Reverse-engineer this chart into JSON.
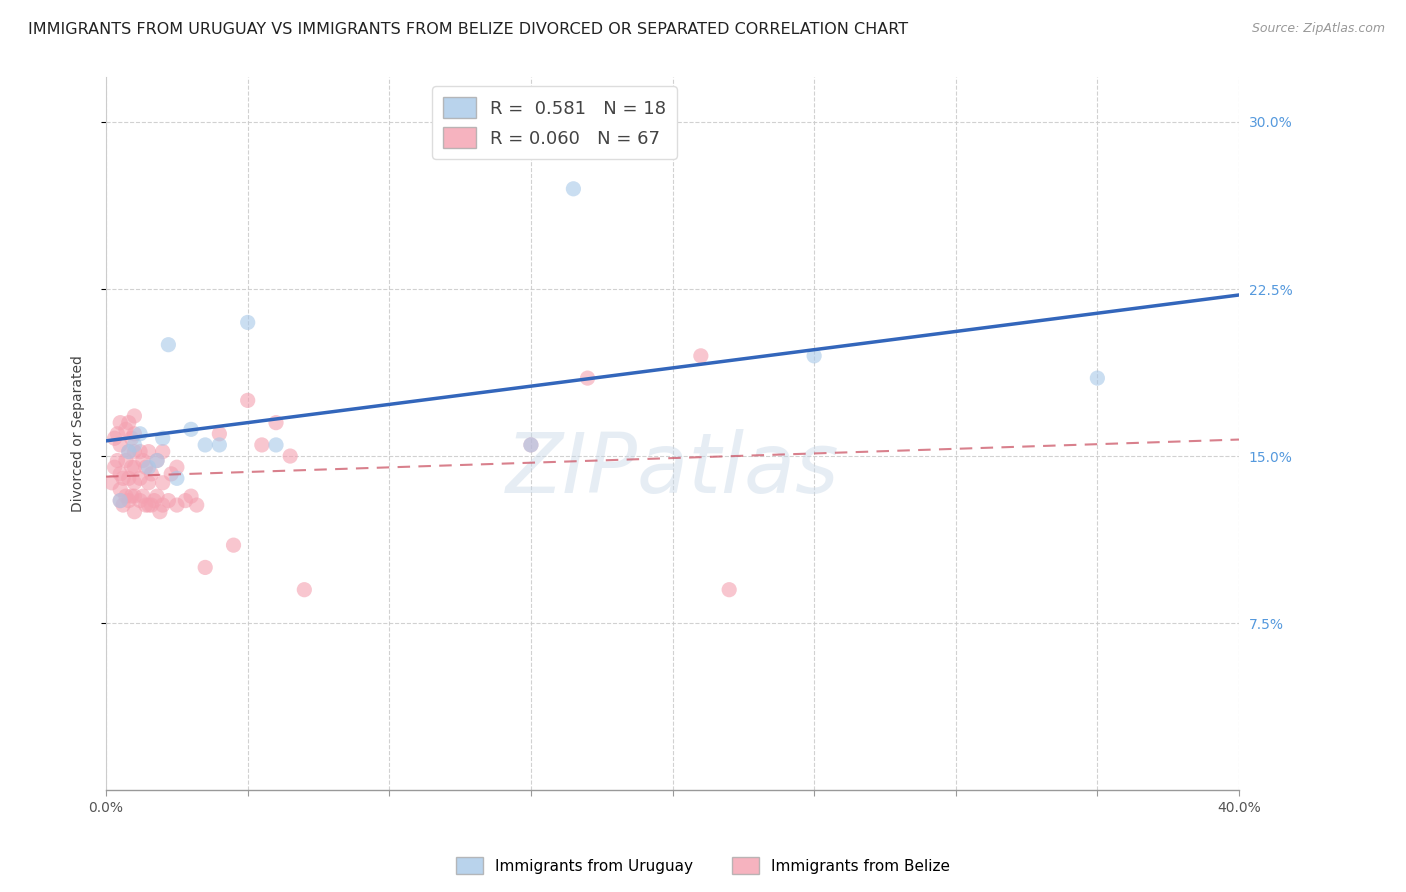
{
  "title": "IMMIGRANTS FROM URUGUAY VS IMMIGRANTS FROM BELIZE DIVORCED OR SEPARATED CORRELATION CHART",
  "source": "Source: ZipAtlas.com",
  "ylabel": "Divorced or Separated",
  "xlim": [
    0.0,
    0.4
  ],
  "ylim": [
    0.0,
    0.32
  ],
  "xlabel_vals": [
    0.0,
    0.05,
    0.1,
    0.15,
    0.2,
    0.25,
    0.3,
    0.35,
    0.4
  ],
  "xlabel_show": [
    0.0,
    0.4
  ],
  "ylabel_vals": [
    0.075,
    0.15,
    0.225,
    0.3
  ],
  "legend_labels": [
    "Immigrants from Uruguay",
    "Immigrants from Belize"
  ],
  "R_uruguay": 0.581,
  "N_uruguay": 18,
  "R_belize": 0.06,
  "N_belize": 67,
  "color_uruguay": "#a8c8e8",
  "color_belize": "#f4a0b0",
  "color_uruguay_line": "#3366bb",
  "color_belize_line": "#cc5566",
  "uruguay_scatter_x": [
    0.005,
    0.008,
    0.01,
    0.012,
    0.015,
    0.018,
    0.02,
    0.022,
    0.025,
    0.03,
    0.035,
    0.04,
    0.05,
    0.06,
    0.15,
    0.165,
    0.25,
    0.35
  ],
  "uruguay_scatter_y": [
    0.13,
    0.152,
    0.155,
    0.16,
    0.145,
    0.148,
    0.158,
    0.2,
    0.14,
    0.162,
    0.155,
    0.155,
    0.21,
    0.155,
    0.155,
    0.27,
    0.195,
    0.185
  ],
  "belize_scatter_x": [
    0.002,
    0.003,
    0.003,
    0.004,
    0.004,
    0.005,
    0.005,
    0.005,
    0.005,
    0.005,
    0.006,
    0.006,
    0.007,
    0.007,
    0.007,
    0.008,
    0.008,
    0.008,
    0.008,
    0.009,
    0.009,
    0.009,
    0.01,
    0.01,
    0.01,
    0.01,
    0.01,
    0.01,
    0.01,
    0.012,
    0.012,
    0.012,
    0.013,
    0.013,
    0.014,
    0.014,
    0.015,
    0.015,
    0.015,
    0.016,
    0.016,
    0.017,
    0.018,
    0.018,
    0.019,
    0.02,
    0.02,
    0.02,
    0.022,
    0.023,
    0.025,
    0.025,
    0.028,
    0.03,
    0.032,
    0.035,
    0.04,
    0.045,
    0.05,
    0.055,
    0.06,
    0.065,
    0.07,
    0.15,
    0.17,
    0.21,
    0.22
  ],
  "belize_scatter_y": [
    0.138,
    0.145,
    0.158,
    0.148,
    0.16,
    0.13,
    0.135,
    0.142,
    0.155,
    0.165,
    0.128,
    0.14,
    0.132,
    0.148,
    0.162,
    0.13,
    0.14,
    0.152,
    0.165,
    0.132,
    0.145,
    0.158,
    0.125,
    0.132,
    0.138,
    0.145,
    0.152,
    0.16,
    0.168,
    0.13,
    0.14,
    0.152,
    0.132,
    0.148,
    0.128,
    0.145,
    0.128,
    0.138,
    0.152,
    0.128,
    0.142,
    0.13,
    0.132,
    0.148,
    0.125,
    0.128,
    0.138,
    0.152,
    0.13,
    0.142,
    0.128,
    0.145,
    0.13,
    0.132,
    0.128,
    0.1,
    0.16,
    0.11,
    0.175,
    0.155,
    0.165,
    0.15,
    0.09,
    0.155,
    0.185,
    0.195,
    0.09
  ],
  "watermark": "ZIPatlas",
  "background_color": "#ffffff",
  "grid_color": "#cccccc",
  "title_color": "#222222",
  "right_tick_color": "#5599dd",
  "title_fontsize": 11.5,
  "axis_label_fontsize": 10,
  "tick_fontsize": 10
}
